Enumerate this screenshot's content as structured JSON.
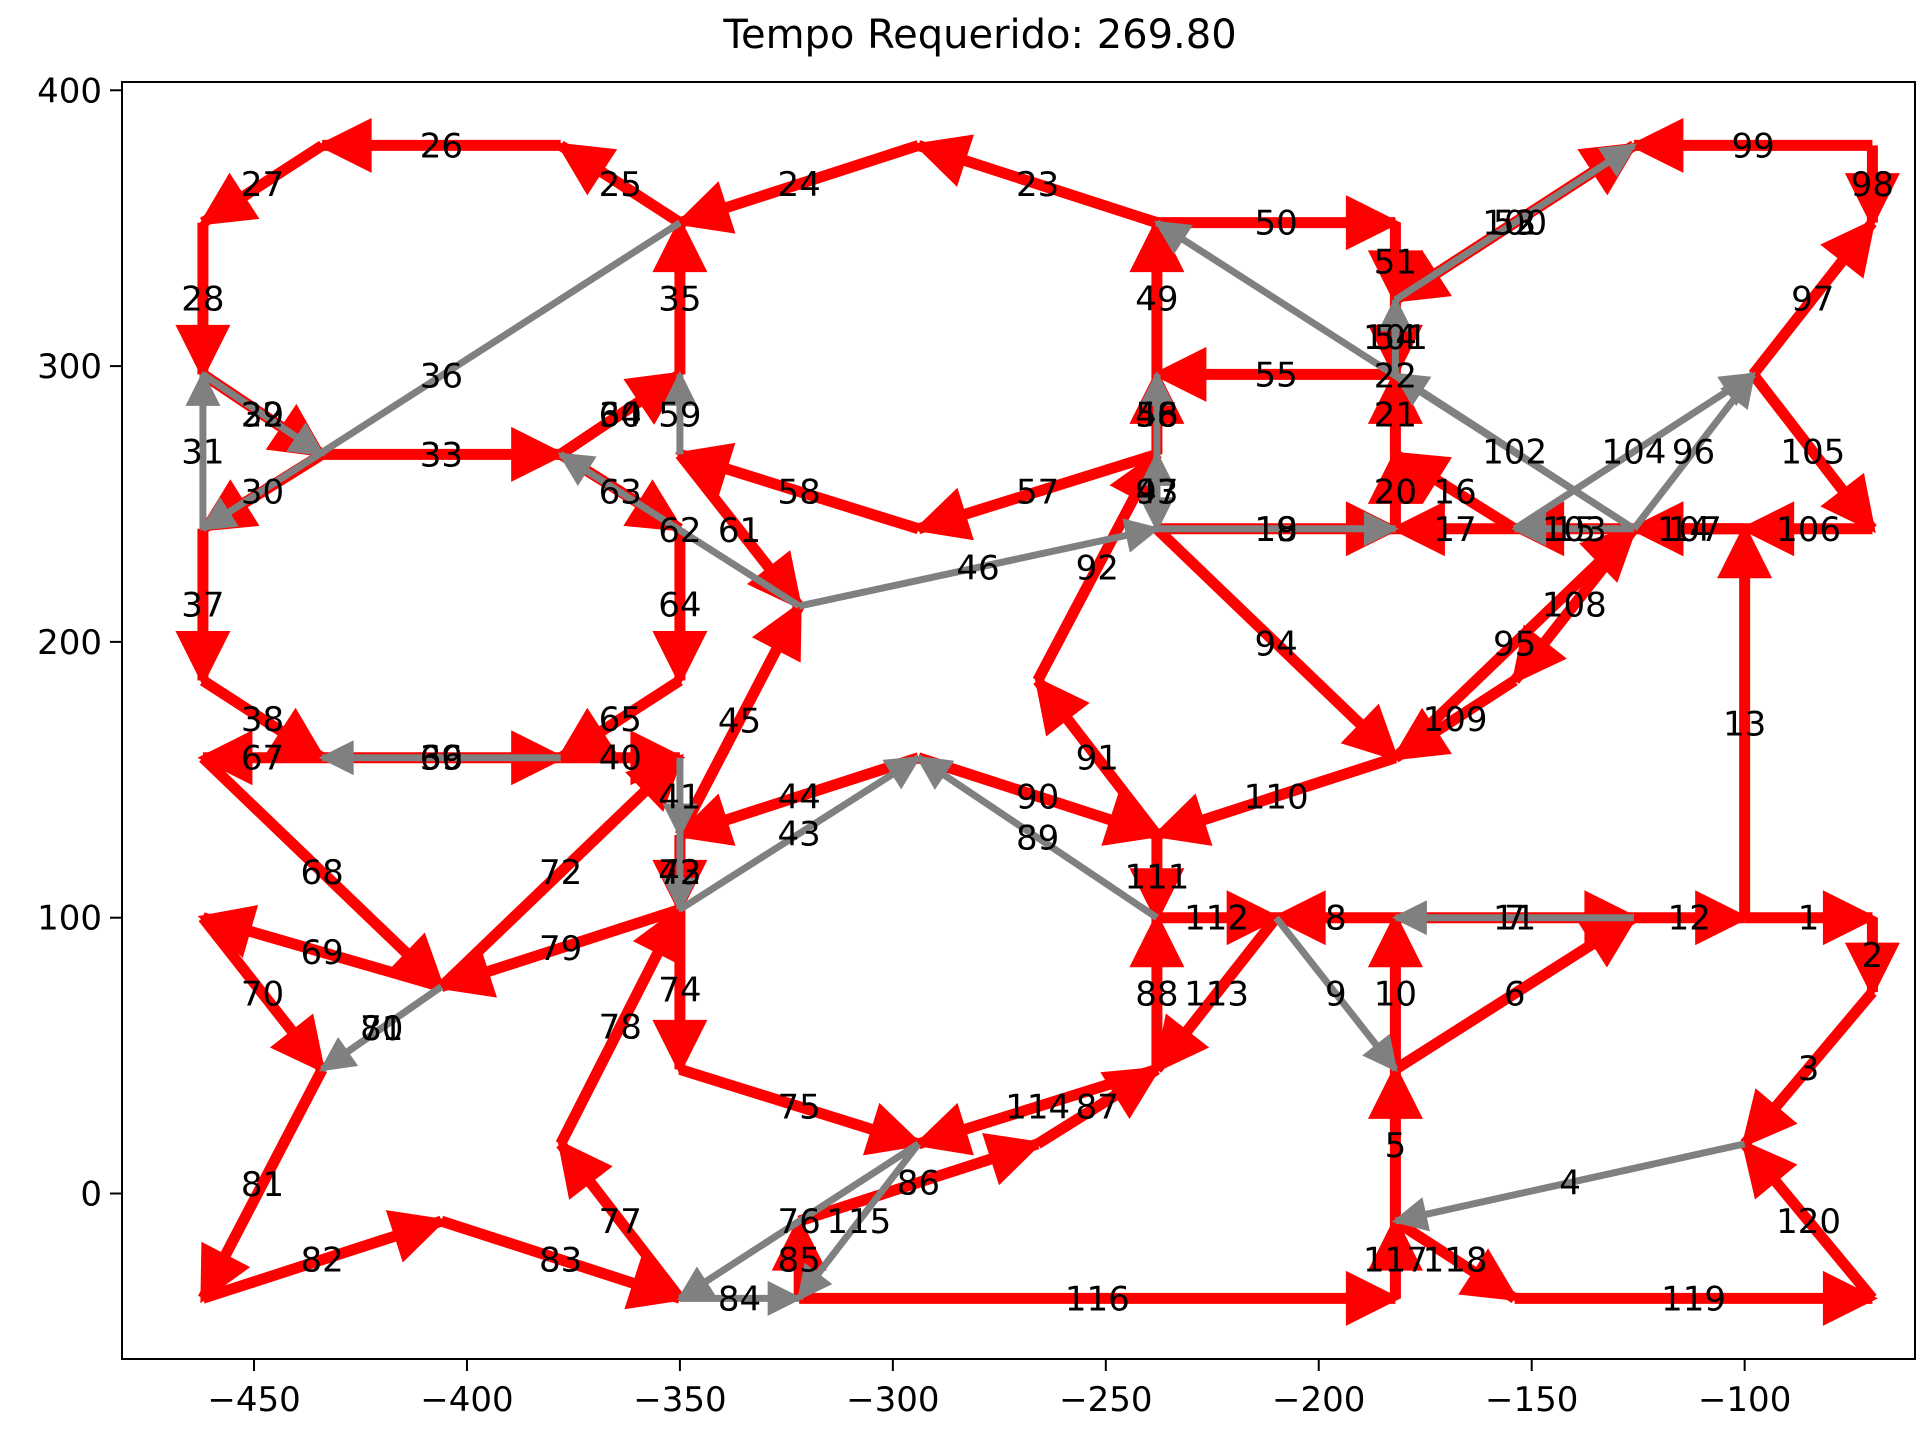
{
  "title": "Tempo Requerido: 269.80",
  "colors": {
    "active": "#ff0000",
    "inactive": "#808080",
    "axis": "#000000"
  },
  "axes": {
    "xlim": [
      -481,
      -60
    ],
    "ylim": [
      -60,
      403
    ],
    "xticks": [
      -450,
      -400,
      -350,
      -300,
      -250,
      -200,
      -150,
      -100
    ],
    "yticks": [
      0,
      100,
      200,
      300,
      400
    ],
    "xtick_labels": [
      "−450",
      "−400",
      "−350",
      "−300",
      "−250",
      "−200",
      "−150",
      "−100"
    ],
    "ytick_labels": [
      "0",
      "100",
      "200",
      "300",
      "400"
    ]
  },
  "edges": [
    {
      "id": "1",
      "from": [
        -100,
        100
      ],
      "to": [
        -70,
        100
      ],
      "type": "active"
    },
    {
      "id": "2",
      "from": [
        -70,
        100
      ],
      "to": [
        -70,
        73
      ],
      "type": "active"
    },
    {
      "id": "3",
      "from": [
        -70,
        73
      ],
      "to": [
        -100,
        18
      ],
      "type": "active"
    },
    {
      "id": "4",
      "from": [
        -100,
        18
      ],
      "to": [
        -182,
        -10
      ],
      "type": "inactive"
    },
    {
      "id": "5",
      "from": [
        -182,
        -10
      ],
      "to": [
        -182,
        45
      ],
      "type": "active"
    },
    {
      "id": "6",
      "from": [
        -182,
        45
      ],
      "to": [
        -126,
        100
      ],
      "type": "active"
    },
    {
      "id": "7",
      "from": [
        -126,
        100
      ],
      "to": [
        -182,
        100
      ],
      "type": "inactive"
    },
    {
      "id": "8",
      "from": [
        -182,
        100
      ],
      "to": [
        -210,
        100
      ],
      "type": "active"
    },
    {
      "id": "9",
      "from": [
        -210,
        100
      ],
      "to": [
        -182,
        45
      ],
      "type": "inactive"
    },
    {
      "id": "10",
      "from": [
        -182,
        45
      ],
      "to": [
        -182,
        100
      ],
      "type": "active"
    },
    {
      "id": "11",
      "from": [
        -182,
        100
      ],
      "to": [
        -126,
        100
      ],
      "type": "active"
    },
    {
      "id": "12",
      "from": [
        -126,
        100
      ],
      "to": [
        -100,
        100
      ],
      "type": "active"
    },
    {
      "id": "13",
      "from": [
        -100,
        100
      ],
      "to": [
        -100,
        241
      ],
      "type": "active"
    },
    {
      "id": "14",
      "from": [
        -100,
        241
      ],
      "to": [
        -126,
        241
      ],
      "type": "active"
    },
    {
      "id": "15",
      "from": [
        -126,
        241
      ],
      "to": [
        -154,
        241
      ],
      "type": "inactive"
    },
    {
      "id": "16",
      "from": [
        -154,
        241
      ],
      "to": [
        -182,
        268
      ],
      "type": "active"
    },
    {
      "id": "17",
      "from": [
        -154,
        241
      ],
      "to": [
        -182,
        241
      ],
      "type": "active"
    },
    {
      "id": "18",
      "from": [
        -238,
        241
      ],
      "to": [
        -182,
        241
      ],
      "type": "inactive"
    },
    {
      "id": "19",
      "from": [
        -238,
        241
      ],
      "to": [
        -182,
        241
      ],
      "type": "active"
    },
    {
      "id": "20",
      "from": [
        -182,
        241
      ],
      "to": [
        -182,
        268
      ],
      "type": "active"
    },
    {
      "id": "21",
      "from": [
        -182,
        268
      ],
      "to": [
        -182,
        297
      ],
      "type": "active"
    },
    {
      "id": "22",
      "from": [
        -126,
        241
      ],
      "to": [
        -238,
        352
      ],
      "type": "inactive"
    },
    {
      "id": "23",
      "from": [
        -238,
        352
      ],
      "to": [
        -294,
        380
      ],
      "type": "active"
    },
    {
      "id": "24",
      "from": [
        -294,
        380
      ],
      "to": [
        -350,
        352
      ],
      "type": "active"
    },
    {
      "id": "25",
      "from": [
        -350,
        352
      ],
      "to": [
        -378,
        380
      ],
      "type": "active"
    },
    {
      "id": "26",
      "from": [
        -378,
        380
      ],
      "to": [
        -434,
        380
      ],
      "type": "active"
    },
    {
      "id": "27",
      "from": [
        -434,
        380
      ],
      "to": [
        -462,
        352
      ],
      "type": "active"
    },
    {
      "id": "28",
      "from": [
        -462,
        352
      ],
      "to": [
        -462,
        297
      ],
      "type": "active"
    },
    {
      "id": "29",
      "from": [
        -462,
        297
      ],
      "to": [
        -434,
        268
      ],
      "type": "active"
    },
    {
      "id": "30",
      "from": [
        -434,
        268
      ],
      "to": [
        -462,
        241
      ],
      "type": "active"
    },
    {
      "id": "31",
      "from": [
        -462,
        241
      ],
      "to": [
        -462,
        297
      ],
      "type": "inactive"
    },
    {
      "id": "32",
      "from": [
        -462,
        297
      ],
      "to": [
        -434,
        268
      ],
      "type": "inactive"
    },
    {
      "id": "33",
      "from": [
        -434,
        268
      ],
      "to": [
        -378,
        268
      ],
      "type": "active"
    },
    {
      "id": "34",
      "from": [
        -378,
        268
      ],
      "to": [
        -350,
        297
      ],
      "type": "active"
    },
    {
      "id": "35",
      "from": [
        -350,
        297
      ],
      "to": [
        -350,
        352
      ],
      "type": "active"
    },
    {
      "id": "36",
      "from": [
        -350,
        352
      ],
      "to": [
        -462,
        241
      ],
      "type": "inactive"
    },
    {
      "id": "37",
      "from": [
        -462,
        241
      ],
      "to": [
        -462,
        186
      ],
      "type": "active"
    },
    {
      "id": "38",
      "from": [
        -462,
        186
      ],
      "to": [
        -434,
        158
      ],
      "type": "active"
    },
    {
      "id": "39",
      "from": [
        -434,
        158
      ],
      "to": [
        -378,
        158
      ],
      "type": "active"
    },
    {
      "id": "40",
      "from": [
        -378,
        158
      ],
      "to": [
        -350,
        158
      ],
      "type": "active"
    },
    {
      "id": "41",
      "from": [
        -350,
        158
      ],
      "to": [
        -350,
        130
      ],
      "type": "inactive"
    },
    {
      "id": "42",
      "from": [
        -350,
        130
      ],
      "to": [
        -350,
        103
      ],
      "type": "active"
    },
    {
      "id": "43",
      "from": [
        -350,
        103
      ],
      "to": [
        -294,
        158
      ],
      "type": "inactive"
    },
    {
      "id": "44",
      "from": [
        -294,
        158
      ],
      "to": [
        -350,
        130
      ],
      "type": "active"
    },
    {
      "id": "45",
      "from": [
        -350,
        130
      ],
      "to": [
        -322,
        213
      ],
      "type": "active"
    },
    {
      "id": "46",
      "from": [
        -322,
        213
      ],
      "to": [
        -238,
        241
      ],
      "type": "inactive"
    },
    {
      "id": "47",
      "from": [
        -238,
        241
      ],
      "to": [
        -238,
        268
      ],
      "type": "inactive"
    },
    {
      "id": "48",
      "from": [
        -238,
        268
      ],
      "to": [
        -238,
        297
      ],
      "type": "inactive"
    },
    {
      "id": "49",
      "from": [
        -238,
        297
      ],
      "to": [
        -238,
        352
      ],
      "type": "active"
    },
    {
      "id": "50",
      "from": [
        -238,
        352
      ],
      "to": [
        -182,
        352
      ],
      "type": "active"
    },
    {
      "id": "51",
      "from": [
        -182,
        352
      ],
      "to": [
        -182,
        324
      ],
      "type": "active"
    },
    {
      "id": "52",
      "from": [
        -182,
        324
      ],
      "to": [
        -126,
        380
      ],
      "type": "active"
    },
    {
      "id": "53",
      "from": [
        -126,
        380
      ],
      "to": [
        -182,
        324
      ],
      "type": "active"
    },
    {
      "id": "54",
      "from": [
        -182,
        324
      ],
      "to": [
        -182,
        297
      ],
      "type": "active"
    },
    {
      "id": "55",
      "from": [
        -182,
        297
      ],
      "to": [
        -238,
        297
      ],
      "type": "active"
    },
    {
      "id": "56",
      "from": [
        -238,
        268
      ],
      "to": [
        -238,
        297
      ],
      "type": "active"
    },
    {
      "id": "57",
      "from": [
        -238,
        268
      ],
      "to": [
        -294,
        241
      ],
      "type": "active"
    },
    {
      "id": "58",
      "from": [
        -294,
        241
      ],
      "to": [
        -350,
        268
      ],
      "type": "active"
    },
    {
      "id": "59",
      "from": [
        -350,
        268
      ],
      "to": [
        -350,
        297
      ],
      "type": "inactive"
    },
    {
      "id": "60",
      "from": [
        -378,
        268
      ],
      "to": [
        -350,
        297
      ],
      "type": "active"
    },
    {
      "id": "61",
      "from": [
        -350,
        268
      ],
      "to": [
        -322,
        213
      ],
      "type": "active"
    },
    {
      "id": "62",
      "from": [
        -322,
        213
      ],
      "to": [
        -378,
        268
      ],
      "type": "inactive"
    },
    {
      "id": "63",
      "from": [
        -378,
        268
      ],
      "to": [
        -350,
        241
      ],
      "type": "active"
    },
    {
      "id": "64",
      "from": [
        -350,
        241
      ],
      "to": [
        -350,
        186
      ],
      "type": "active"
    },
    {
      "id": "65",
      "from": [
        -350,
        186
      ],
      "to": [
        -378,
        158
      ],
      "type": "active"
    },
    {
      "id": "66",
      "from": [
        -378,
        158
      ],
      "to": [
        -434,
        158
      ],
      "type": "inactive"
    },
    {
      "id": "67",
      "from": [
        -434,
        158
      ],
      "to": [
        -462,
        158
      ],
      "type": "active"
    },
    {
      "id": "68",
      "from": [
        -462,
        158
      ],
      "to": [
        -406,
        75
      ],
      "type": "active"
    },
    {
      "id": "69",
      "from": [
        -406,
        75
      ],
      "to": [
        -462,
        100
      ],
      "type": "active"
    },
    {
      "id": "70",
      "from": [
        -462,
        100
      ],
      "to": [
        -434,
        45
      ],
      "type": "active"
    },
    {
      "id": "71",
      "from": [
        -406,
        75
      ],
      "to": [
        -434,
        45
      ],
      "type": "inactive"
    },
    {
      "id": "72",
      "from": [
        -406,
        75
      ],
      "to": [
        -350,
        158
      ],
      "type": "active"
    },
    {
      "id": "73",
      "from": [
        -350,
        130
      ],
      "to": [
        -350,
        103
      ],
      "type": "inactive"
    },
    {
      "id": "74",
      "from": [
        -350,
        103
      ],
      "to": [
        -350,
        45
      ],
      "type": "active"
    },
    {
      "id": "75",
      "from": [
        -350,
        45
      ],
      "to": [
        -294,
        18
      ],
      "type": "active"
    },
    {
      "id": "76",
      "from": [
        -294,
        18
      ],
      "to": [
        -350,
        -38
      ],
      "type": "inactive"
    },
    {
      "id": "77",
      "from": [
        -350,
        -38
      ],
      "to": [
        -378,
        18
      ],
      "type": "active"
    },
    {
      "id": "78",
      "from": [
        -378,
        18
      ],
      "to": [
        -350,
        103
      ],
      "type": "active"
    },
    {
      "id": "79",
      "from": [
        -350,
        103
      ],
      "to": [
        -406,
        75
      ],
      "type": "active"
    },
    {
      "id": "80",
      "from": [
        -406,
        75
      ],
      "to": [
        -434,
        45
      ],
      "type": "inactive"
    },
    {
      "id": "81",
      "from": [
        -434,
        45
      ],
      "to": [
        -462,
        -38
      ],
      "type": "active"
    },
    {
      "id": "82",
      "from": [
        -462,
        -38
      ],
      "to": [
        -406,
        -10
      ],
      "type": "active"
    },
    {
      "id": "83",
      "from": [
        -406,
        -10
      ],
      "to": [
        -350,
        -38
      ],
      "type": "active"
    },
    {
      "id": "84",
      "from": [
        -350,
        -38
      ],
      "to": [
        -322,
        -38
      ],
      "type": "inactive"
    },
    {
      "id": "85",
      "from": [
        -322,
        -38
      ],
      "to": [
        -322,
        -10
      ],
      "type": "active"
    },
    {
      "id": "86",
      "from": [
        -322,
        -10
      ],
      "to": [
        -266,
        18
      ],
      "type": "active"
    },
    {
      "id": "87",
      "from": [
        -266,
        18
      ],
      "to": [
        -238,
        45
      ],
      "type": "active"
    },
    {
      "id": "88",
      "from": [
        -238,
        45
      ],
      "to": [
        -238,
        100
      ],
      "type": "active"
    },
    {
      "id": "89",
      "from": [
        -238,
        100
      ],
      "to": [
        -294,
        158
      ],
      "type": "inactive"
    },
    {
      "id": "90",
      "from": [
        -294,
        158
      ],
      "to": [
        -238,
        130
      ],
      "type": "active"
    },
    {
      "id": "91",
      "from": [
        -238,
        130
      ],
      "to": [
        -266,
        186
      ],
      "type": "active"
    },
    {
      "id": "92",
      "from": [
        -266,
        186
      ],
      "to": [
        -238,
        268
      ],
      "type": "active"
    },
    {
      "id": "93",
      "from": [
        -238,
        268
      ],
      "to": [
        -238,
        241
      ],
      "type": "inactive"
    },
    {
      "id": "94",
      "from": [
        -238,
        241
      ],
      "to": [
        -182,
        158
      ],
      "type": "active"
    },
    {
      "id": "95",
      "from": [
        -182,
        158
      ],
      "to": [
        -126,
        241
      ],
      "type": "active"
    },
    {
      "id": "96",
      "from": [
        -126,
        241
      ],
      "to": [
        -98,
        297
      ],
      "type": "inactive"
    },
    {
      "id": "97",
      "from": [
        -98,
        297
      ],
      "to": [
        -70,
        352
      ],
      "type": "active"
    },
    {
      "id": "98",
      "from": [
        -70,
        380
      ],
      "to": [
        -70,
        352
      ],
      "type": "active"
    },
    {
      "id": "99",
      "from": [
        -70,
        380
      ],
      "to": [
        -126,
        380
      ],
      "type": "active"
    },
    {
      "id": "100",
      "from": [
        -182,
        324
      ],
      "to": [
        -126,
        380
      ],
      "type": "inactive"
    },
    {
      "id": "101",
      "from": [
        -182,
        297
      ],
      "to": [
        -182,
        324
      ],
      "type": "inactive"
    },
    {
      "id": "102",
      "from": [
        -126,
        241
      ],
      "to": [
        -182,
        297
      ],
      "type": "inactive"
    },
    {
      "id": "103",
      "from": [
        -126,
        241
      ],
      "to": [
        -154,
        241
      ],
      "type": "active"
    },
    {
      "id": "104",
      "from": [
        -154,
        241
      ],
      "to": [
        -98,
        297
      ],
      "type": "inactive"
    },
    {
      "id": "105",
      "from": [
        -98,
        297
      ],
      "to": [
        -70,
        241
      ],
      "type": "active"
    },
    {
      "id": "106",
      "from": [
        -70,
        241
      ],
      "to": [
        -100,
        241
      ],
      "type": "active"
    },
    {
      "id": "107",
      "from": [
        -100,
        241
      ],
      "to": [
        -126,
        241
      ],
      "type": "active"
    },
    {
      "id": "108",
      "from": [
        -126,
        241
      ],
      "to": [
        -154,
        186
      ],
      "type": "active"
    },
    {
      "id": "109",
      "from": [
        -154,
        186
      ],
      "to": [
        -182,
        158
      ],
      "type": "active"
    },
    {
      "id": "110",
      "from": [
        -182,
        158
      ],
      "to": [
        -238,
        130
      ],
      "type": "active"
    },
    {
      "id": "111",
      "from": [
        -238,
        130
      ],
      "to": [
        -238,
        100
      ],
      "type": "active"
    },
    {
      "id": "112",
      "from": [
        -238,
        100
      ],
      "to": [
        -210,
        100
      ],
      "type": "active"
    },
    {
      "id": "113",
      "from": [
        -210,
        100
      ],
      "to": [
        -238,
        45
      ],
      "type": "active"
    },
    {
      "id": "114",
      "from": [
        -238,
        45
      ],
      "to": [
        -294,
        18
      ],
      "type": "active"
    },
    {
      "id": "115",
      "from": [
        -294,
        18
      ],
      "to": [
        -322,
        -38
      ],
      "type": "inactive"
    },
    {
      "id": "116",
      "from": [
        -322,
        -38
      ],
      "to": [
        -182,
        -38
      ],
      "type": "active"
    },
    {
      "id": "117",
      "from": [
        -182,
        -38
      ],
      "to": [
        -182,
        -10
      ],
      "type": "active"
    },
    {
      "id": "118",
      "from": [
        -182,
        -10
      ],
      "to": [
        -154,
        -38
      ],
      "type": "active"
    },
    {
      "id": "119",
      "from": [
        -154,
        -38
      ],
      "to": [
        -70,
        -38
      ],
      "type": "active"
    },
    {
      "id": "120",
      "from": [
        -70,
        -38
      ],
      "to": [
        -100,
        18
      ],
      "type": "active"
    }
  ]
}
